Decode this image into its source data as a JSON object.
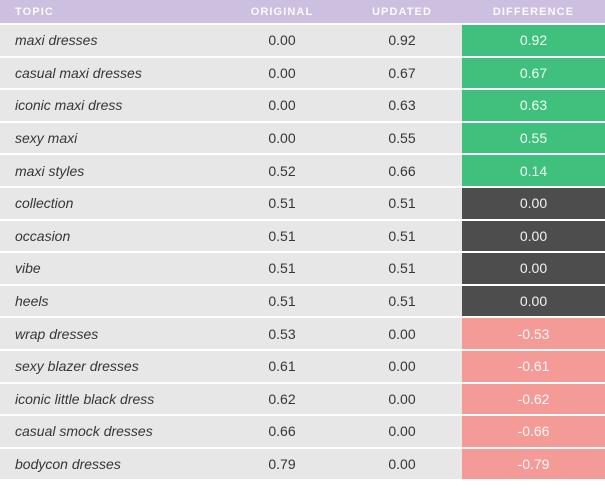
{
  "colors": {
    "header_bg": "#cdbfe0",
    "row_bg": "#e8e7e7",
    "body_text": "#34363a",
    "positive": "#3fc07d",
    "zero": "#4d4d4d",
    "negative": "#f49b97",
    "separator": "#ffffff",
    "cell_text": "#ffffff"
  },
  "chart_data": {
    "type": "table",
    "title": "",
    "columns": [
      "TOPIC",
      "ORIGINAL",
      "UPDATED",
      "DIFFERENCE"
    ],
    "rows": [
      {
        "topic": "maxi dresses",
        "original": "0.00",
        "updated": "0.92",
        "difference": "0.92",
        "difference_type": "positive"
      },
      {
        "topic": "casual maxi dresses",
        "original": "0.00",
        "updated": "0.67",
        "difference": "0.67",
        "difference_type": "positive"
      },
      {
        "topic": "iconic maxi dress",
        "original": "0.00",
        "updated": "0.63",
        "difference": "0.63",
        "difference_type": "positive"
      },
      {
        "topic": "sexy maxi",
        "original": "0.00",
        "updated": "0.55",
        "difference": "0.55",
        "difference_type": "positive"
      },
      {
        "topic": "maxi styles",
        "original": "0.52",
        "updated": "0.66",
        "difference": "0.14",
        "difference_type": "positive"
      },
      {
        "topic": "collection",
        "original": "0.51",
        "updated": "0.51",
        "difference": "0.00",
        "difference_type": "zero"
      },
      {
        "topic": "occasion",
        "original": "0.51",
        "updated": "0.51",
        "difference": "0.00",
        "difference_type": "zero"
      },
      {
        "topic": "vibe",
        "original": "0.51",
        "updated": "0.51",
        "difference": "0.00",
        "difference_type": "zero"
      },
      {
        "topic": "heels",
        "original": "0.51",
        "updated": "0.51",
        "difference": "0.00",
        "difference_type": "zero"
      },
      {
        "topic": "wrap dresses",
        "original": "0.53",
        "updated": "0.00",
        "difference": "-0.53",
        "difference_type": "negative"
      },
      {
        "topic": "sexy blazer dresses",
        "original": "0.61",
        "updated": "0.00",
        "difference": "-0.61",
        "difference_type": "negative"
      },
      {
        "topic": "iconic little black dress",
        "original": "0.62",
        "updated": "0.00",
        "difference": "-0.62",
        "difference_type": "negative"
      },
      {
        "topic": "casual smock dresses",
        "original": "0.66",
        "updated": "0.00",
        "difference": "-0.66",
        "difference_type": "negative"
      },
      {
        "topic": "bodycon dresses",
        "original": "0.79",
        "updated": "0.00",
        "difference": "-0.79",
        "difference_type": "negative"
      }
    ]
  }
}
